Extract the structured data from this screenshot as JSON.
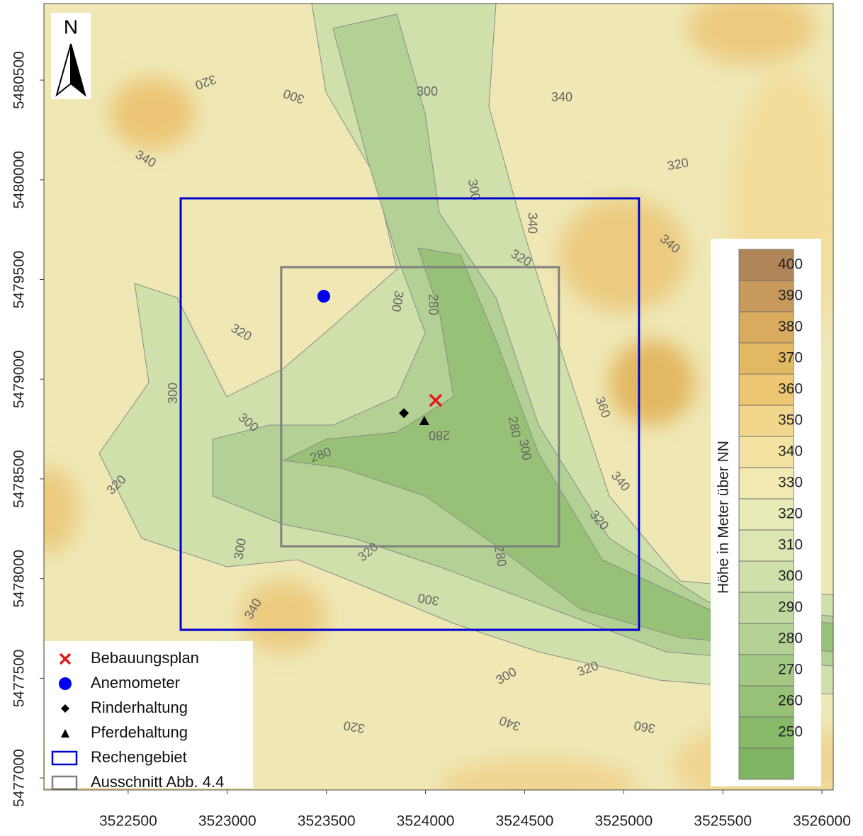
{
  "map": {
    "north_label": "N",
    "xlim": [
      3522075,
      3526057
    ],
    "ylim": [
      5476940,
      5480884
    ],
    "xticks": [
      3522500,
      3523000,
      3523500,
      3524000,
      3524500,
      3525000,
      3525500,
      3526000
    ],
    "yticks": [
      5477000,
      5477500,
      5478000,
      5478500,
      5479000,
      5479500,
      5480000,
      5480500
    ],
    "domains": [
      {
        "name": "Rechengebiet",
        "color": "#0000d0",
        "x": [
          3522765,
          3525077
        ],
        "y": [
          5477743,
          5479907
        ]
      },
      {
        "name": "Ausschnitt Abb. 4.4",
        "color": "#808080",
        "x": [
          3523272,
          3524673
        ],
        "y": [
          5478162,
          5479562
        ]
      }
    ],
    "points": [
      {
        "name": "Bebauungsplan",
        "color": "#e31a1c",
        "x": 3524051,
        "y": 5478894
      },
      {
        "name": "Anemometer",
        "color": "#0000ee",
        "x": 3523487,
        "y": 5479416
      },
      {
        "name": "Rinderhaltung",
        "color": "#000000",
        "x": 3523891,
        "y": 5478830
      },
      {
        "name": "Pferdehaltung",
        "color": "#000000",
        "x": 3523994,
        "y": 5478791
      }
    ],
    "contour_labels": [
      320,
      300,
      300,
      340,
      340,
      320,
      300,
      340,
      320,
      340,
      320,
      300,
      280,
      300,
      300,
      280,
      280,
      280,
      300,
      360,
      340,
      320,
      320,
      320,
      300,
      280,
      300,
      340,
      300,
      320,
      320,
      340,
      360
    ],
    "colorbar": {
      "title": "Höhe in Meter über NN",
      "lim": [
        240,
        410
      ],
      "ticks": [
        250,
        260,
        270,
        280,
        290,
        300,
        310,
        320,
        330,
        340,
        350,
        360,
        370,
        380,
        390,
        400
      ],
      "colors": [
        "#7fb562",
        "#88ba69",
        "#97c176",
        "#a4c985",
        "#b3d194",
        "#c1d9a1",
        "#cfe0ab",
        "#dde6b3",
        "#e8eab7",
        "#f2eab2",
        "#f4e2a3",
        "#f2d68c",
        "#eec773",
        "#e3b862",
        "#d8ab5e",
        "#c79a5c",
        "#b08558"
      ]
    }
  }
}
